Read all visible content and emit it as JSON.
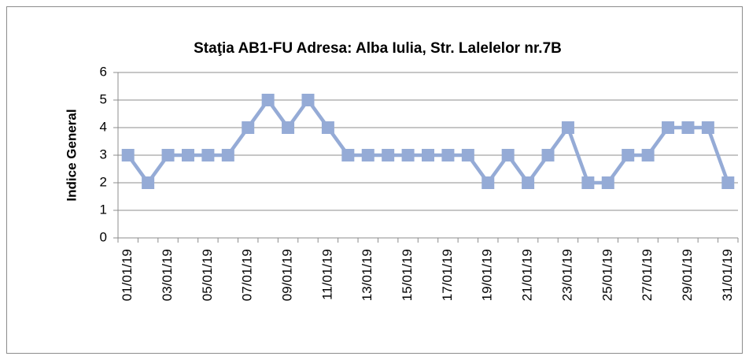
{
  "chart_data": {
    "type": "line",
    "title": "Staţia AB1-FU  Adresa: Alba Iulia, Str. Lalelelor nr.7B",
    "ylabel": "Indice General",
    "categories": [
      "01/01/19",
      null,
      "03/01/19",
      null,
      "05/01/19",
      null,
      "07/01/19",
      null,
      "09/01/19",
      null,
      "11/01/19",
      null,
      "13/01/19",
      null,
      "15/01/19",
      null,
      "17/01/19",
      null,
      "19/01/19",
      null,
      "21/01/19",
      null,
      "23/01/19",
      null,
      "25/01/19",
      null,
      "27/01/19",
      null,
      "29/01/19",
      null,
      "31/01/19"
    ],
    "series": [
      {
        "name": "Indice General",
        "color": "#95abd6",
        "values": [
          3,
          2,
          3,
          3,
          3,
          3,
          4,
          5,
          4,
          5,
          4,
          3,
          3,
          3,
          3,
          3,
          3,
          3,
          2,
          3,
          2,
          3,
          4,
          2,
          2,
          3,
          3,
          4,
          4,
          4,
          2
        ]
      }
    ],
    "ylim": [
      0,
      6
    ],
    "yticks": [
      0,
      1,
      2,
      3,
      4,
      5,
      6
    ],
    "grid": true
  }
}
